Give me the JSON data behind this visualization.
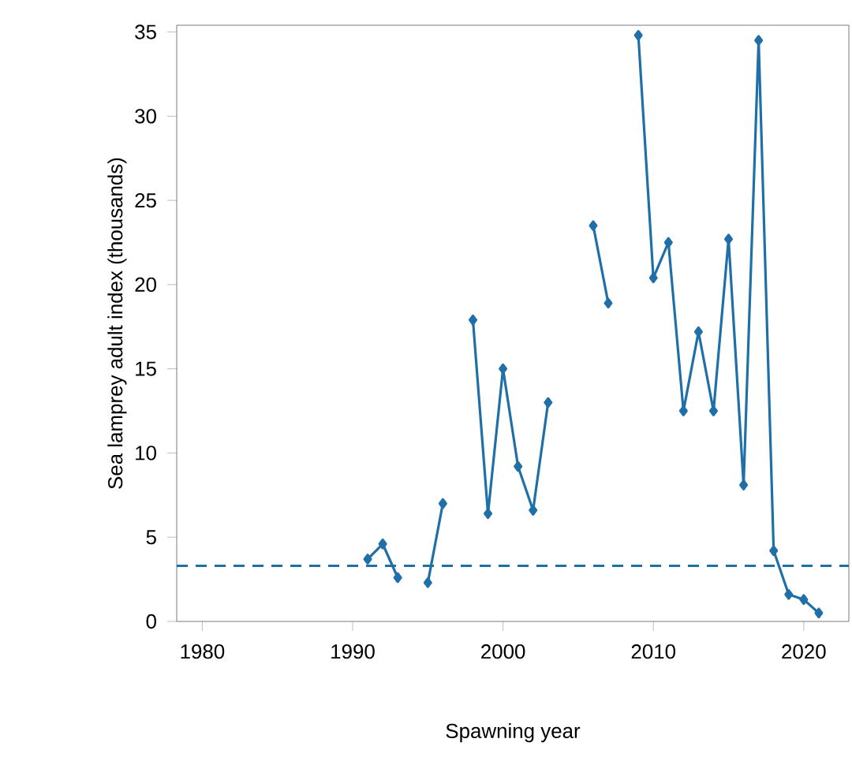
{
  "chart_data": {
    "type": "line",
    "xlabel": "Spawning year",
    "ylabel": "Sea lamprey adult index  (thousands)",
    "x": [
      1991,
      1992,
      1993,
      1994,
      1995,
      1996,
      1997,
      1998,
      1999,
      2000,
      2001,
      2002,
      2003,
      2004,
      2005,
      2006,
      2007,
      2008,
      2009,
      2010,
      2011,
      2012,
      2013,
      2014,
      2015,
      2016,
      2017,
      2018,
      2019,
      2020,
      2021
    ],
    "series": [
      {
        "color": "#1f6fa8",
        "values": [
          3.7,
          4.6,
          2.6,
          null,
          2.3,
          7.0,
          null,
          17.9,
          6.4,
          15.0,
          9.2,
          6.6,
          13.0,
          null,
          null,
          23.5,
          18.9,
          null,
          34.8,
          20.4,
          22.5,
          12.5,
          17.2,
          12.5,
          22.7,
          8.1,
          34.5,
          4.2,
          1.6,
          1.3,
          0.5
        ]
      }
    ],
    "marker": "diamond",
    "line_style": "solid",
    "xlim": [
      1978.3,
      2023
    ],
    "ylim": [
      0,
      35.4
    ],
    "xticks": [
      1980,
      1990,
      2000,
      2010,
      2020
    ],
    "yticks": [
      0,
      5,
      10,
      15,
      20,
      25,
      30,
      35
    ],
    "ref_lines": [
      {
        "axis": "y",
        "value": 3.3,
        "color": "#1f6fa8",
        "line_style": "dashed"
      }
    ],
    "grid": false
  }
}
